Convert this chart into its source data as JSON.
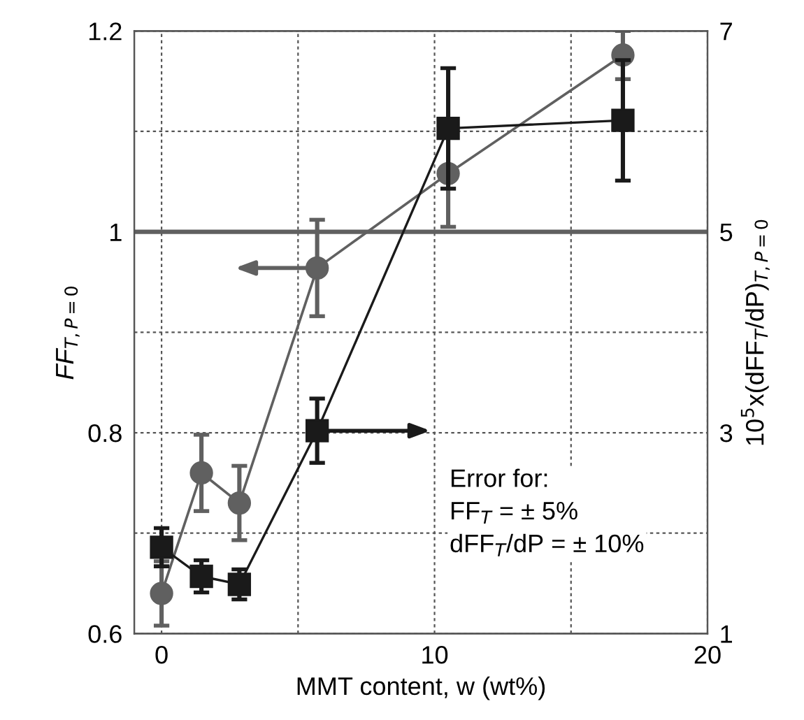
{
  "chart_data": {
    "type": "line",
    "xlabel": "MMT content, w (wt%)",
    "ylabel": "FF$_{T,P=0}$",
    "y2label": "10$^{5}$x(dFF$_{T}$/dP)$_{T,P=0}$",
    "xlim": [
      -1,
      20
    ],
    "xticks": [
      0,
      {
        "value": 5,
        "label": null
      },
      10,
      {
        "value": 15,
        "label": null
      },
      20
    ],
    "ylim": [
      0.6,
      1.2
    ],
    "yticks": [
      0.6,
      {
        "value": 0.7,
        "label": null
      },
      0.8,
      {
        "value": 0.9,
        "label": null
      },
      1,
      {
        "value": 1.1,
        "label": null
      },
      1.2
    ],
    "y2lim": [
      1,
      7
    ],
    "y2ticks": [
      1,
      {
        "value": 2,
        "label": null
      },
      3,
      {
        "value": 4,
        "label": null
      },
      5,
      {
        "value": 6,
        "label": null
      },
      7
    ],
    "grid": true,
    "legend": false,
    "series": [
      {
        "color": "#606060",
        "marker": "circle",
        "x": [
          0,
          1.46,
          2.85,
          5.7,
          10.5,
          16.9
        ],
        "values": [
          0.64,
          0.76,
          0.73,
          0.964,
          1.058,
          1.176
        ],
        "errors": [
          0.032,
          0.038,
          0.037,
          0.048,
          0.053,
          0.024
        ]
      },
      {
        "color": "#1a1a1a",
        "marker": "square",
        "axis": "y2",
        "x": [
          0,
          1.46,
          2.85,
          5.7,
          10.5,
          16.9
        ],
        "values": [
          1.86,
          1.57,
          1.49,
          3.02,
          6.03,
          6.11
        ],
        "errors": [
          0.19,
          0.16,
          0.15,
          0.32,
          0.6,
          0.6
        ]
      }
    ],
    "ref_lines": [
      {
        "axis": "y",
        "value": 1,
        "color": "#606060",
        "line_style": "solid"
      }
    ],
    "annotations": [
      "Error for:\nFF$_{T}$ = ± 5%\ndFF$_{T}$/dP = ± 10%"
    ]
  }
}
